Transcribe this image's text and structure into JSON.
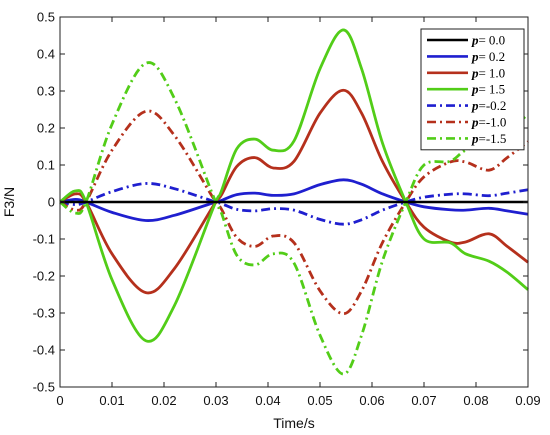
{
  "chart_data": {
    "type": "line",
    "xlabel": "Time/s",
    "ylabel": "F3/N",
    "xlim": [
      0,
      0.09
    ],
    "ylim": [
      -0.5,
      0.5
    ],
    "x_ticks": [
      "0",
      "0.01",
      "0.02",
      "0.03",
      "0.04",
      "0.05",
      "0.06",
      "0.07",
      "0.08",
      "0.09"
    ],
    "y_ticks": [
      "-0.5",
      "-0.4",
      "-0.3",
      "-0.2",
      "-0.1",
      "0",
      "0.1",
      "0.2",
      "0.3",
      "0.4",
      "0.5"
    ],
    "grid": false,
    "legend_position": "top-right",
    "x": [
      0,
      0.003,
      0.005,
      0.01,
      0.0165,
      0.022,
      0.0295,
      0.031,
      0.034,
      0.0375,
      0.041,
      0.045,
      0.05,
      0.0545,
      0.058,
      0.062,
      0.0665,
      0.07,
      0.075,
      0.078,
      0.0825,
      0.086,
      0.09
    ],
    "series": [
      {
        "name": "0.0",
        "color": "#000000",
        "dash": "solid",
        "values": [
          0,
          0,
          0,
          0,
          0,
          0,
          0,
          0,
          0,
          0,
          0,
          0,
          0,
          0,
          0,
          0,
          0,
          0,
          0,
          0,
          0,
          0,
          0
        ]
      },
      {
        "name": "0.2",
        "color": "#1f1fcf",
        "dash": "solid",
        "values": [
          0,
          0.007,
          0,
          -0.028,
          -0.05,
          -0.036,
          -0.002,
          0.004,
          0.02,
          0.024,
          0.018,
          0.022,
          0.047,
          0.06,
          0.048,
          0.022,
          0,
          -0.013,
          -0.021,
          -0.022,
          -0.017,
          -0.024,
          -0.033
        ]
      },
      {
        "name": "1.0",
        "color": "#b5301c",
        "dash": "solid",
        "values": [
          0,
          0.022,
          0,
          -0.14,
          -0.245,
          -0.18,
          -0.01,
          0.018,
          0.096,
          0.12,
          0.092,
          0.11,
          0.24,
          0.302,
          0.24,
          0.11,
          0,
          -0.068,
          -0.108,
          -0.108,
          -0.086,
          -0.12,
          -0.163
        ]
      },
      {
        "name": "1.5",
        "color": "#52cd18",
        "dash": "solid",
        "values": [
          0,
          0.03,
          0,
          -0.21,
          -0.375,
          -0.28,
          -0.015,
          0.028,
          0.144,
          0.17,
          0.14,
          0.165,
          0.36,
          0.465,
          0.36,
          0.16,
          0,
          -0.1,
          -0.11,
          -0.14,
          -0.16,
          -0.19,
          -0.237
        ]
      },
      {
        "name": "-0.2",
        "color": "#1f1fcf",
        "dash": "dashdot",
        "values": [
          0,
          -0.007,
          0,
          0.028,
          0.05,
          0.036,
          0.002,
          -0.004,
          -0.02,
          -0.024,
          -0.018,
          -0.022,
          -0.047,
          -0.06,
          -0.048,
          -0.022,
          0,
          0.013,
          0.021,
          0.022,
          0.017,
          0.024,
          0.033
        ]
      },
      {
        "name": "-1.0",
        "color": "#b5301c",
        "dash": "dashdot",
        "values": [
          0,
          -0.022,
          0,
          0.14,
          0.245,
          0.18,
          0.01,
          -0.018,
          -0.096,
          -0.12,
          -0.092,
          -0.11,
          -0.24,
          -0.302,
          -0.24,
          -0.11,
          0,
          0.068,
          0.108,
          0.108,
          0.086,
          0.12,
          0.163
        ]
      },
      {
        "name": "-1.5",
        "color": "#52cd18",
        "dash": "dashdot",
        "values": [
          0,
          -0.03,
          0,
          0.21,
          0.375,
          0.28,
          0.015,
          -0.028,
          -0.144,
          -0.17,
          -0.14,
          -0.165,
          -0.36,
          -0.465,
          -0.36,
          -0.16,
          0,
          0.1,
          0.11,
          0.14,
          0.16,
          0.19,
          0.237
        ]
      }
    ],
    "legend": {
      "symbol": "p",
      "separator": "=",
      "entries": [
        "0.0",
        "0.2",
        "1.0",
        "1.5",
        "-0.2",
        "-1.0",
        "-1.5"
      ]
    }
  }
}
